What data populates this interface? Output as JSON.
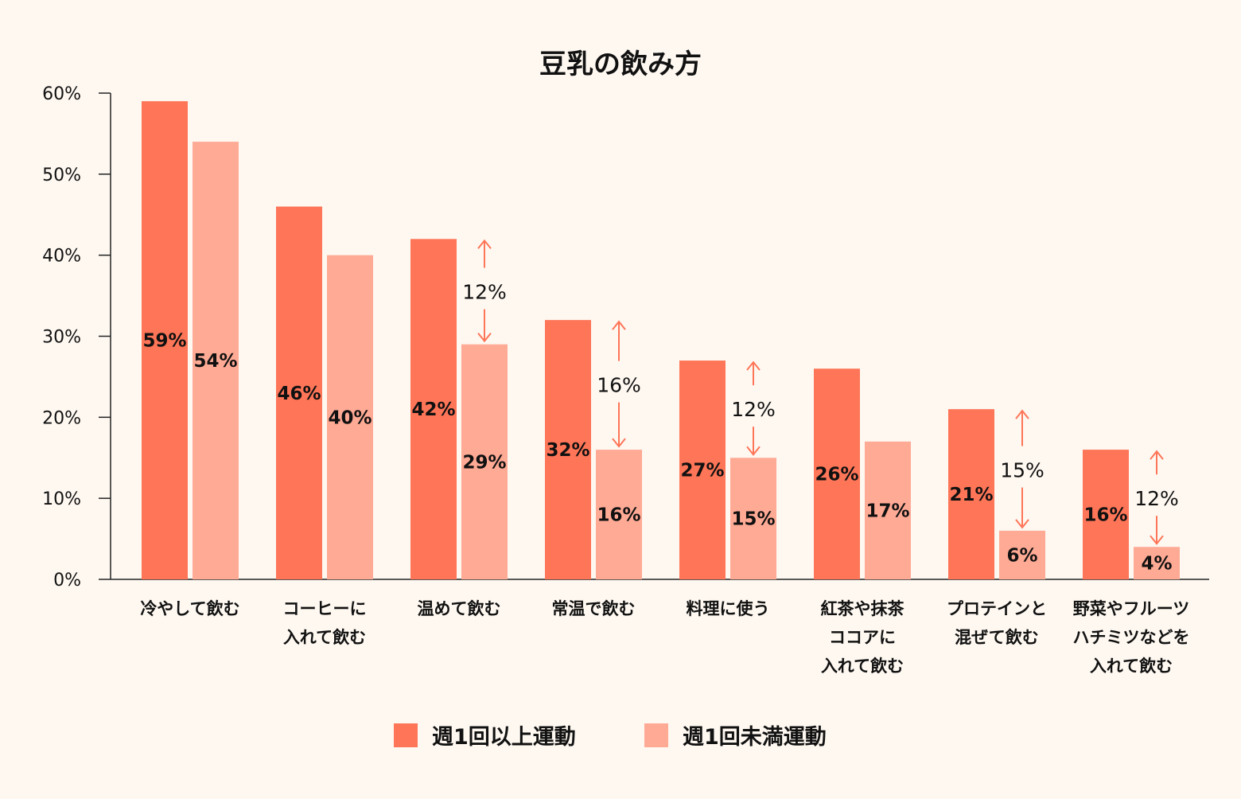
{
  "chart_data": {
    "type": "bar",
    "title": "豆乳の飲み方",
    "xlabel": "",
    "ylabel": "",
    "ylim": [
      0,
      60
    ],
    "yticks": [
      "0%",
      "10%",
      "20%",
      "30%",
      "40%",
      "50%",
      "60%"
    ],
    "categories": [
      [
        "冷やして飲む"
      ],
      [
        "コーヒーに",
        "入れて飲む"
      ],
      [
        "温めて飲む"
      ],
      [
        "常温で飲む"
      ],
      [
        "料理に使う"
      ],
      [
        "紅茶や抹茶",
        "ココアに",
        "入れて飲む"
      ],
      [
        "プロテインと",
        "混ぜて飲む"
      ],
      [
        "野菜やフルーツ",
        "ハチミツなどを",
        "入れて飲む"
      ]
    ],
    "series": [
      {
        "name": "週1回以上運動",
        "color": "#ff7557",
        "values": [
          59,
          46,
          42,
          32,
          27,
          26,
          21,
          16
        ],
        "labels": [
          "59%",
          "46%",
          "42%",
          "32%",
          "27%",
          "26%",
          "21%",
          "16%"
        ]
      },
      {
        "name": "週1回未満運動",
        "color": "#ffaa95",
        "values": [
          54,
          40,
          29,
          16,
          15,
          17,
          6,
          4
        ],
        "labels": [
          "54%",
          "40%",
          "29%",
          "16%",
          "15%",
          "17%",
          "6%",
          "4%"
        ]
      }
    ],
    "differences": [
      {
        "index": 2,
        "label": "12%"
      },
      {
        "index": 3,
        "label": "16%"
      },
      {
        "index": 4,
        "label": "12%"
      },
      {
        "index": 6,
        "label": "15%"
      },
      {
        "index": 7,
        "label": "12%"
      }
    ],
    "arrow_color": "#ff7557",
    "legend_position": "bottom-center",
    "grid": false
  }
}
